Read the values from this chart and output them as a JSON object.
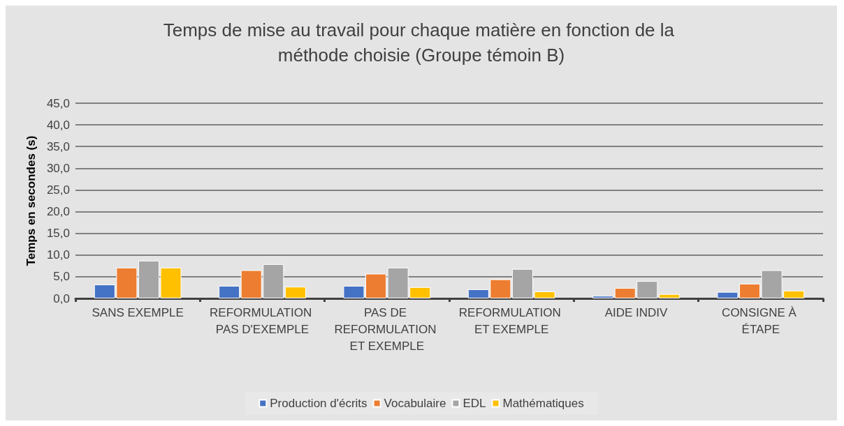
{
  "chart_data": {
    "type": "bar",
    "title": "Temps de mise au travail pour chaque matière en fonction de la méthode choisie (Groupe témoin B)",
    "ylabel": "Temps en secondes (s)",
    "categories": [
      "SANS EXEMPLE",
      "REFORMULATION PAS D'EXEMPLE",
      "PAS DE REFORMULATION ET EXEMPLE",
      "REFORMULATION ET EXEMPLE",
      "AIDE INDIV",
      "CONSIGNE À ÉTAPE"
    ],
    "series": [
      {
        "name": "Production d'écrits",
        "color": "#4472c4",
        "values": [
          3.2,
          2.9,
          2.9,
          2.1,
          0.6,
          1.5
        ]
      },
      {
        "name": "Vocabulaire",
        "color": "#ed7d31",
        "values": [
          7.1,
          6.5,
          5.7,
          4.4,
          2.4,
          3.4
        ]
      },
      {
        "name": "EDL",
        "color": "#a5a5a5",
        "values": [
          8.7,
          7.9,
          7.1,
          6.8,
          4.0,
          6.5
        ]
      },
      {
        "name": "Mathématiques",
        "color": "#ffc000",
        "values": [
          7.1,
          2.7,
          2.6,
          1.6,
          1.0,
          1.8
        ]
      }
    ],
    "ylim": [
      0,
      45
    ],
    "yticks": [
      {
        "value": 0,
        "label": "0,0"
      },
      {
        "value": 5,
        "label": "5,0"
      },
      {
        "value": 10,
        "label": "10,0"
      },
      {
        "value": 15,
        "label": "15,0"
      },
      {
        "value": 20,
        "label": "20,0"
      },
      {
        "value": 25,
        "label": "25,0"
      },
      {
        "value": 30,
        "label": "30,0"
      },
      {
        "value": 35,
        "label": "35,0"
      },
      {
        "value": 40,
        "label": "40,0"
      },
      {
        "value": 45,
        "label": "45,0"
      }
    ],
    "grid": "y",
    "legend": "bottom"
  }
}
